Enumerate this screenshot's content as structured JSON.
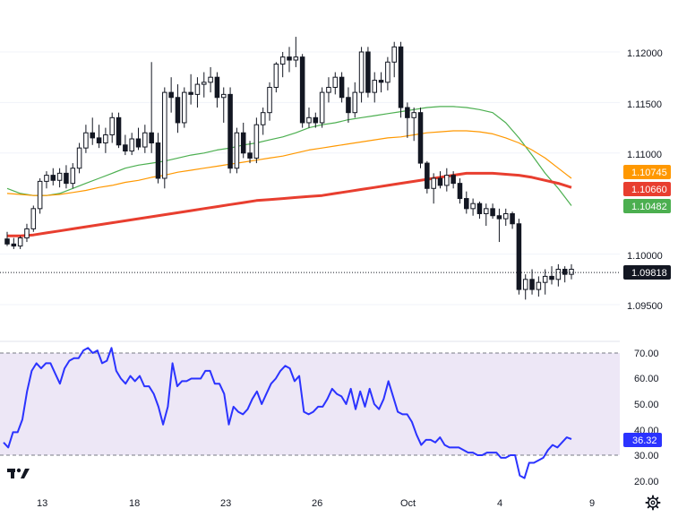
{
  "chart_data": [
    {
      "type": "candlestick",
      "title": "",
      "price_axis": {
        "ticks": [
          "1.12000",
          "1.11500",
          "1.11000",
          "1.10000",
          "1.09500"
        ],
        "tick_values": [
          1.12,
          1.115,
          1.11,
          1.1,
          1.095
        ],
        "ylim": [
          1.092,
          1.124
        ]
      },
      "x_axis": {
        "ticks": [
          "13",
          "18",
          "23",
          "26",
          "Oct",
          "4",
          "9"
        ]
      },
      "candles": [
        [
          1.1015,
          1.1022,
          1.1008,
          1.101
        ],
        [
          1.101,
          1.1016,
          1.1005,
          1.1008
        ],
        [
          1.1008,
          1.1018,
          1.1005,
          1.1016
        ],
        [
          1.1016,
          1.103,
          1.1012,
          1.1025
        ],
        [
          1.1025,
          1.1048,
          1.1022,
          1.1045
        ],
        [
          1.1045,
          1.1075,
          1.104,
          1.1072
        ],
        [
          1.1072,
          1.1082,
          1.1065,
          1.1078
        ],
        [
          1.1078,
          1.1085,
          1.1068,
          1.1073
        ],
        [
          1.1073,
          1.1085,
          1.1066,
          1.108
        ],
        [
          1.108,
          1.1088,
          1.1065,
          1.107
        ],
        [
          1.107,
          1.109,
          1.1065,
          1.1085
        ],
        [
          1.1085,
          1.111,
          1.108,
          1.1105
        ],
        [
          1.1105,
          1.1128,
          1.11,
          1.112
        ],
        [
          1.112,
          1.1135,
          1.1108,
          1.1115
        ],
        [
          1.1115,
          1.1128,
          1.1105,
          1.111
        ],
        [
          1.111,
          1.1125,
          1.11,
          1.1118
        ],
        [
          1.1118,
          1.114,
          1.111,
          1.1135
        ],
        [
          1.1135,
          1.114,
          1.1105,
          1.1108
        ],
        [
          1.1108,
          1.1118,
          1.1098,
          1.1102
        ],
        [
          1.1102,
          1.112,
          1.1098,
          1.1114
        ],
        [
          1.1114,
          1.1125,
          1.1103,
          1.1106
        ],
        [
          1.1106,
          1.1128,
          1.11,
          1.112
        ],
        [
          1.112,
          1.119,
          1.11,
          1.111
        ],
        [
          1.111,
          1.112,
          1.107,
          1.1075
        ],
        [
          1.1075,
          1.1165,
          1.1065,
          1.116
        ],
        [
          1.116,
          1.1175,
          1.114,
          1.1155
        ],
        [
          1.1155,
          1.1168,
          1.112,
          1.113
        ],
        [
          1.113,
          1.1165,
          1.1125,
          1.116
        ],
        [
          1.116,
          1.1178,
          1.1148,
          1.1158
        ],
        [
          1.1158,
          1.1175,
          1.1145,
          1.1168
        ],
        [
          1.1168,
          1.118,
          1.1155,
          1.117
        ],
        [
          1.117,
          1.1185,
          1.116,
          1.1175
        ],
        [
          1.1175,
          1.118,
          1.1145,
          1.1155
        ],
        [
          1.1155,
          1.1165,
          1.113,
          1.1158
        ],
        [
          1.1158,
          1.1165,
          1.108,
          1.1085
        ],
        [
          1.1085,
          1.1125,
          1.108,
          1.112
        ],
        [
          1.112,
          1.113,
          1.1095,
          1.11
        ],
        [
          1.11,
          1.1112,
          1.109,
          1.1095
        ],
        [
          1.1095,
          1.1135,
          1.109,
          1.1128
        ],
        [
          1.1128,
          1.1145,
          1.1118,
          1.114
        ],
        [
          1.114,
          1.117,
          1.1132,
          1.1165
        ],
        [
          1.1165,
          1.119,
          1.116,
          1.1188
        ],
        [
          1.1188,
          1.12,
          1.1175,
          1.1195
        ],
        [
          1.1195,
          1.1205,
          1.118,
          1.1192
        ],
        [
          1.1192,
          1.1215,
          1.1185,
          1.1195
        ],
        [
          1.1195,
          1.1198,
          1.1125,
          1.113
        ],
        [
          1.113,
          1.1145,
          1.1125,
          1.1135
        ],
        [
          1.1135,
          1.114,
          1.1125,
          1.113
        ],
        [
          1.113,
          1.1165,
          1.1125,
          1.116
        ],
        [
          1.116,
          1.1175,
          1.115,
          1.1165
        ],
        [
          1.1165,
          1.118,
          1.1158,
          1.1175
        ],
        [
          1.1175,
          1.118,
          1.115,
          1.1155
        ],
        [
          1.1155,
          1.1165,
          1.113,
          1.114
        ],
        [
          1.114,
          1.117,
          1.1135,
          1.116
        ],
        [
          1.116,
          1.1205,
          1.115,
          1.12
        ],
        [
          1.12,
          1.1205,
          1.1155,
          1.116
        ],
        [
          1.116,
          1.118,
          1.115,
          1.1172
        ],
        [
          1.1172,
          1.118,
          1.116,
          1.117
        ],
        [
          1.117,
          1.1195,
          1.1162,
          1.119
        ],
        [
          1.119,
          1.121,
          1.1175,
          1.1205
        ],
        [
          1.1205,
          1.121,
          1.1135,
          1.1145
        ],
        [
          1.1145,
          1.115,
          1.1115,
          1.1135
        ],
        [
          1.1135,
          1.1145,
          1.1112,
          1.114
        ],
        [
          1.114,
          1.1145,
          1.1085,
          1.109
        ],
        [
          1.109,
          1.1092,
          1.106,
          1.1065
        ],
        [
          1.1065,
          1.108,
          1.105,
          1.1075
        ],
        [
          1.1075,
          1.1082,
          1.1065,
          1.1068
        ],
        [
          1.1068,
          1.1085,
          1.1062,
          1.1078
        ],
        [
          1.1078,
          1.1082,
          1.1065,
          1.107
        ],
        [
          1.107,
          1.1075,
          1.105,
          1.1055
        ],
        [
          1.1055,
          1.1062,
          1.104,
          1.1045
        ],
        [
          1.1045,
          1.1055,
          1.1038,
          1.105
        ],
        [
          1.105,
          1.1052,
          1.1035,
          1.104
        ],
        [
          1.104,
          1.105,
          1.1028,
          1.1045
        ],
        [
          1.1045,
          1.105,
          1.1035,
          1.1038
        ],
        [
          1.1038,
          1.1045,
          1.1012,
          1.1035
        ],
        [
          1.1035,
          1.1045,
          1.1028,
          1.104
        ],
        [
          1.104,
          1.1042,
          1.1025,
          1.103
        ],
        [
          1.103,
          1.1035,
          1.096,
          1.0965
        ],
        [
          1.0965,
          1.098,
          1.0955,
          1.0975
        ],
        [
          1.0975,
          1.0985,
          1.096,
          1.0965
        ],
        [
          1.0965,
          1.0978,
          1.0958,
          1.0972
        ],
        [
          1.0972,
          1.0985,
          1.096,
          1.0978
        ],
        [
          1.0978,
          1.0988,
          1.097,
          1.0975
        ],
        [
          1.0975,
          1.099,
          1.0968,
          1.0985
        ],
        [
          1.0985,
          1.0988,
          1.0972,
          1.098
        ],
        [
          1.098,
          1.099,
          1.0975,
          1.0985
        ]
      ],
      "moving_averages": [
        {
          "color": "#4caf50",
          "label": "1.10482",
          "values": [
            1.1065,
            1.106,
            1.1058,
            1.1058,
            1.106,
            1.1065,
            1.107,
            1.1075,
            1.108,
            1.1085,
            1.1088,
            1.109,
            1.1092,
            1.1095,
            1.1098,
            1.11,
            1.1103,
            1.1105,
            1.1108,
            1.111,
            1.1113,
            1.1116,
            1.112,
            1.1125,
            1.1128,
            1.113,
            1.1133,
            1.1135,
            1.1137,
            1.1139,
            1.1141,
            1.1143,
            1.1145,
            1.1146,
            1.1146,
            1.1145,
            1.1143,
            1.114,
            1.113,
            1.1115,
            1.1098,
            1.108,
            1.1065,
            1.1048
          ]
        },
        {
          "color": "#ff9800",
          "label": "1.10745",
          "values": [
            1.106,
            1.1059,
            1.1058,
            1.1058,
            1.1059,
            1.1061,
            1.1063,
            1.1066,
            1.1068,
            1.1071,
            1.1073,
            1.1076,
            1.1078,
            1.1081,
            1.1083,
            1.1085,
            1.1087,
            1.1089,
            1.1091,
            1.1093,
            1.1095,
            1.1097,
            1.11,
            1.1103,
            1.1105,
            1.1107,
            1.1109,
            1.1111,
            1.1113,
            1.1115,
            1.1116,
            1.1118,
            1.112,
            1.1121,
            1.1122,
            1.1122,
            1.1121,
            1.1119,
            1.1115,
            1.111,
            1.1103,
            1.1095,
            1.1085,
            1.1075
          ]
        },
        {
          "color": "#e83e2f",
          "label": "1.10660",
          "values": [
            1.1018,
            1.1018,
            1.1019,
            1.1021,
            1.1023,
            1.1025,
            1.1027,
            1.1029,
            1.1031,
            1.1033,
            1.1035,
            1.1037,
            1.1039,
            1.1041,
            1.1043,
            1.1045,
            1.1047,
            1.1049,
            1.1051,
            1.1053,
            1.1054,
            1.1055,
            1.1056,
            1.1057,
            1.1058,
            1.106,
            1.1062,
            1.1064,
            1.1066,
            1.1068,
            1.107,
            1.1072,
            1.1074,
            1.1076,
            1.1078,
            1.108,
            1.108,
            1.108,
            1.1079,
            1.1078,
            1.1076,
            1.1073,
            1.107,
            1.1066
          ]
        }
      ],
      "last_price": {
        "value": 1.09818,
        "label": "1.09818"
      }
    },
    {
      "type": "line",
      "title": "",
      "rsi_axis": {
        "ticks": [
          "70.00",
          "60.00",
          "50.00",
          "40.00",
          "30.00",
          "20.00"
        ],
        "tick_values": [
          70,
          60,
          50,
          40,
          30,
          20
        ],
        "ylim": [
          16,
          76
        ],
        "band": [
          30,
          70
        ]
      },
      "series": [
        {
          "color": "#2b33ff",
          "label": "36.32",
          "values": [
            35,
            33,
            39,
            39,
            44,
            55,
            63,
            66,
            64,
            66,
            66,
            62,
            58,
            64,
            67,
            68,
            68,
            71,
            72,
            70,
            71,
            66,
            67,
            72,
            63,
            60,
            58,
            61,
            59,
            61,
            57,
            57,
            54,
            49,
            42,
            49,
            66,
            57,
            59,
            59,
            60,
            60,
            60,
            63,
            63,
            58,
            58,
            54,
            42,
            49,
            47,
            46,
            48,
            52,
            55,
            50,
            54,
            58,
            60,
            63,
            65,
            64,
            59,
            61,
            47,
            46,
            47,
            49,
            49,
            52,
            56,
            54,
            53,
            50,
            56,
            48,
            55,
            49,
            56,
            50,
            48,
            52,
            59,
            53,
            47,
            46,
            46,
            43,
            38,
            34,
            36,
            36,
            35,
            37,
            34,
            33,
            33,
            33,
            32,
            31,
            31,
            30,
            30,
            31,
            31,
            31,
            29,
            29,
            30,
            30,
            22,
            21,
            27,
            27,
            28,
            29,
            32,
            34,
            33,
            35,
            37,
            36.32
          ]
        }
      ],
      "last_value": {
        "value": 36.32,
        "label": "36.32"
      }
    }
  ],
  "price_axis_labels": [
    "1.12000",
    "1.11500",
    "1.11000",
    "1.10000",
    "1.09500"
  ],
  "rsi_axis_labels": [
    "70.00",
    "60.00",
    "50.00",
    "40.00",
    "30.00",
    "20.00"
  ],
  "x_labels": [
    "13",
    "18",
    "23",
    "26",
    "Oct",
    "4",
    "9"
  ],
  "badges": {
    "orange": "1.10745",
    "red": "1.10660",
    "green": "1.10482",
    "last": "1.09818",
    "rsi": "36.32"
  },
  "colors": {
    "up": "#ffffff",
    "down": "#131722",
    "sma_fast": "#4caf50",
    "sma_mid": "#ff9800",
    "sma_slow": "#e83e2f",
    "rsi_line": "#2b33ff",
    "rsi_band": "#ede7f6"
  },
  "icons": {
    "logo": "tradingview-logo",
    "settings": "gear-icon"
  }
}
